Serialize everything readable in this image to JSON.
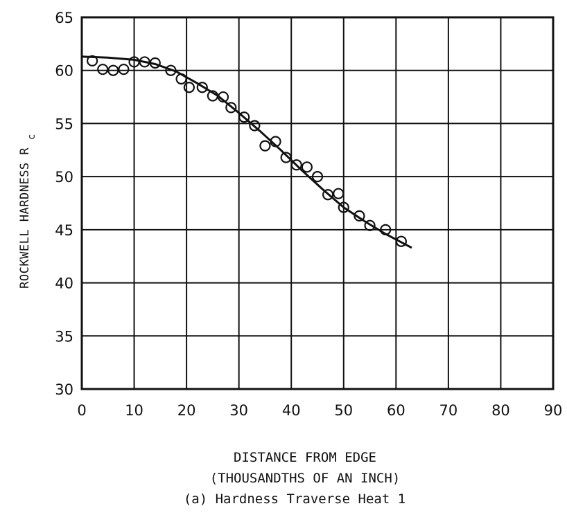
{
  "chart_data": {
    "type": "scatter",
    "xlabel": "DISTANCE FROM EDGE",
    "xlabel_sub": "(THOUSANDTHS OF AN INCH)",
    "ylabel": "ROCKWELL HARDNESS R",
    "ylabel_subscript": "c",
    "caption": "(a) Hardness Traverse Heat 1",
    "xlim": [
      0,
      90
    ],
    "ylim": [
      30,
      65
    ],
    "x_ticks": [
      "0",
      "10",
      "20",
      "30",
      "40",
      "50",
      "60",
      "70",
      "80",
      "90"
    ],
    "y_ticks": [
      "30",
      "35",
      "40",
      "45",
      "50",
      "55",
      "60",
      "65"
    ],
    "grid": true,
    "series": [
      {
        "marker": "open-circle",
        "points": [
          [
            2,
            60.9
          ],
          [
            4,
            60.1
          ],
          [
            6,
            60.0
          ],
          [
            8,
            60.1
          ],
          [
            10,
            60.8
          ],
          [
            12,
            60.8
          ],
          [
            14,
            60.7
          ],
          [
            17,
            60.0
          ],
          [
            19,
            59.2
          ],
          [
            20.5,
            58.4
          ],
          [
            23,
            58.4
          ],
          [
            25,
            57.6
          ],
          [
            27,
            57.5
          ],
          [
            28.5,
            56.5
          ],
          [
            31,
            55.6
          ],
          [
            33,
            54.8
          ],
          [
            35,
            52.9
          ],
          [
            37,
            53.3
          ],
          [
            39,
            51.8
          ],
          [
            41,
            51.1
          ],
          [
            43,
            50.9
          ],
          [
            45,
            50.0
          ],
          [
            47,
            48.3
          ],
          [
            49,
            48.4
          ],
          [
            50,
            47.1
          ],
          [
            53,
            46.3
          ],
          [
            55,
            45.4
          ],
          [
            58,
            45.0
          ],
          [
            61,
            43.9
          ]
        ]
      },
      {
        "marker": "line",
        "points": [
          [
            0,
            61.3
          ],
          [
            5,
            61.2
          ],
          [
            10,
            61.0
          ],
          [
            14,
            60.6
          ],
          [
            18,
            59.9
          ],
          [
            22,
            58.8
          ],
          [
            26,
            57.6
          ],
          [
            30,
            56.0
          ],
          [
            34,
            54.3
          ],
          [
            38,
            52.5
          ],
          [
            42,
            50.6
          ],
          [
            46,
            48.8
          ],
          [
            50,
            47.1
          ],
          [
            54,
            45.8
          ],
          [
            58,
            44.6
          ],
          [
            63,
            43.3
          ]
        ]
      }
    ]
  }
}
